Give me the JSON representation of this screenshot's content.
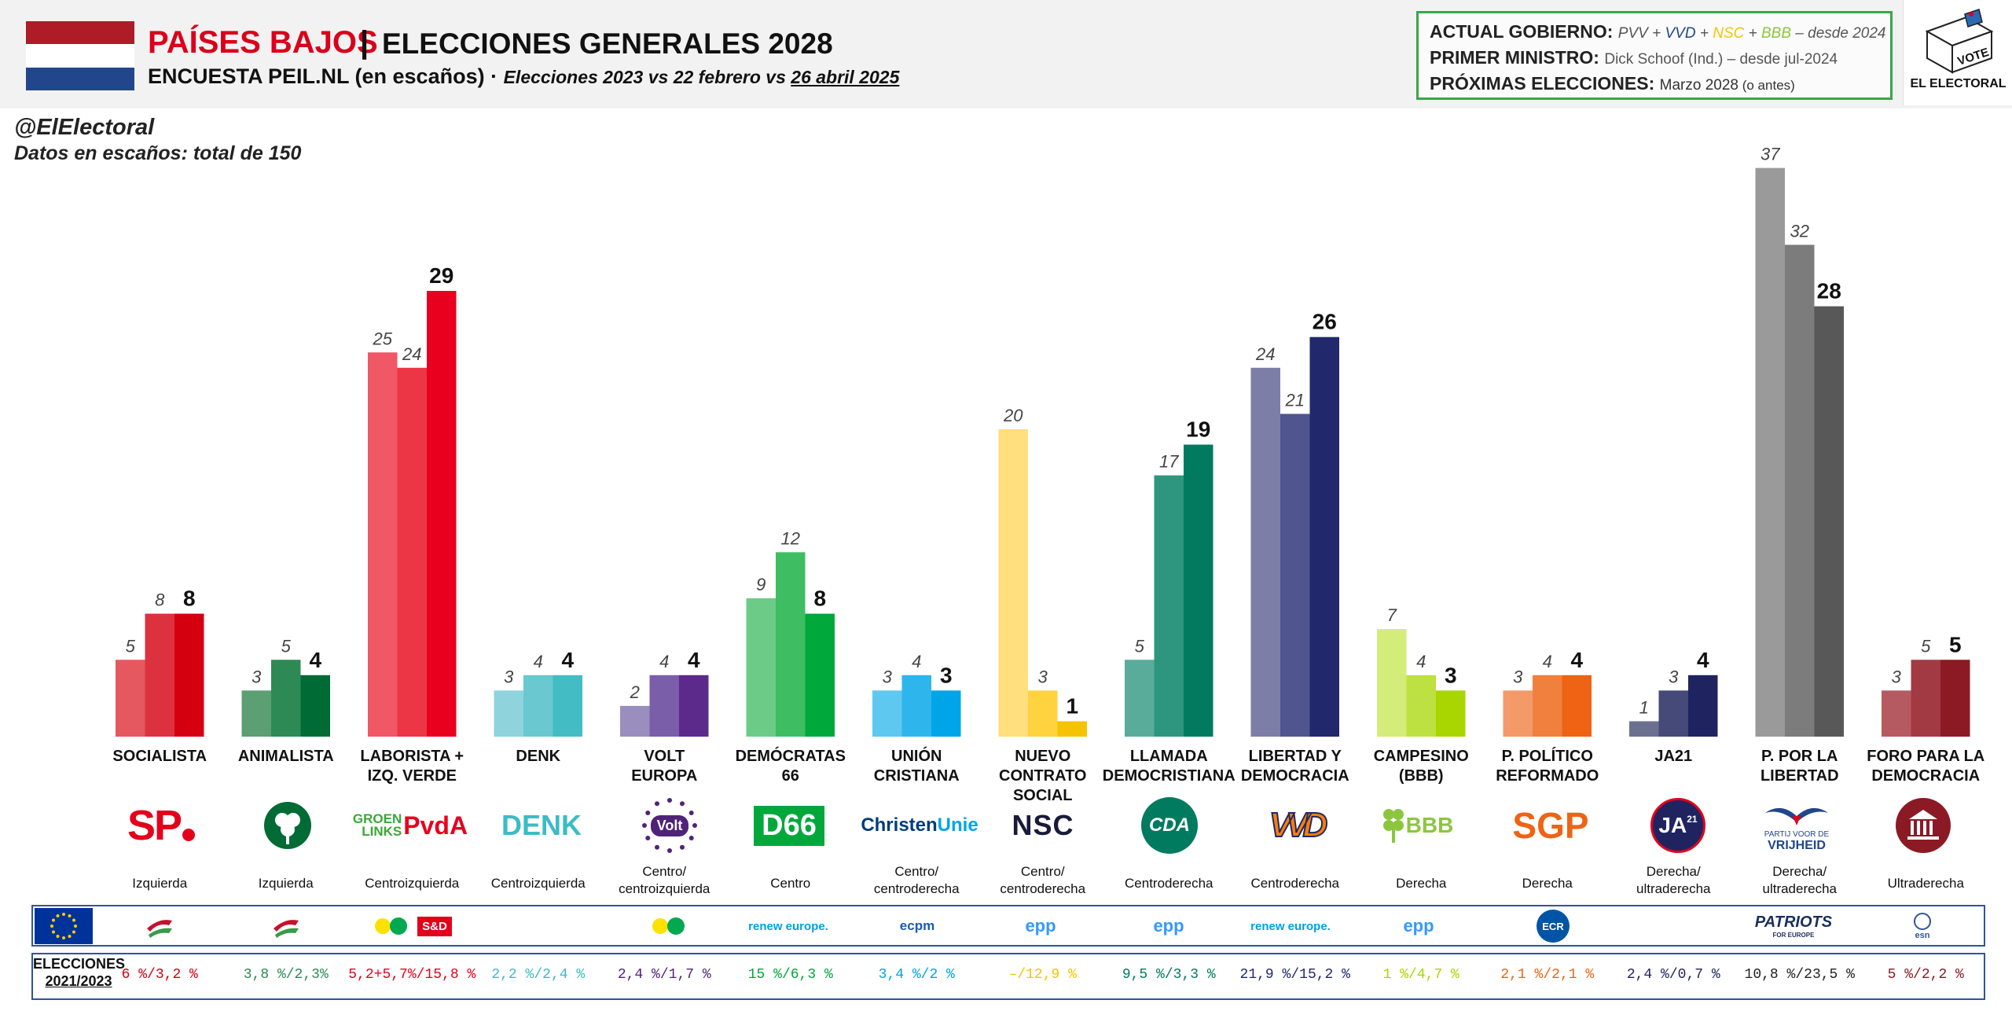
{
  "header": {
    "country": "PAÍSES BAJOS",
    "separator": "|",
    "election": "ELECCIONES GENERALES 2028",
    "subtitle_main": "ENCUESTA PEIL.NL (en escaños)",
    "subtitle_dot": " · ",
    "subtitle_compare": "Elecciones 2023 vs 22 febrero vs ",
    "subtitle_date": "26 abril 2025",
    "flag_colors": [
      "#ae1c28",
      "#ffffff",
      "#21468b"
    ]
  },
  "infobox": {
    "gov_key": "ACTUAL GOBIERNO:",
    "gov_parties": [
      {
        "text": "PVV",
        "color": "#555555"
      },
      {
        "text": " + ",
        "color": "#555555"
      },
      {
        "text": "VVD",
        "color": "#21468b"
      },
      {
        "text": " + ",
        "color": "#555555"
      },
      {
        "text": "NSC",
        "color": "#f5c400"
      },
      {
        "text": " + ",
        "color": "#555555"
      },
      {
        "text": "BBB",
        "color": "#8cc63f"
      }
    ],
    "gov_since": " – desde 2024",
    "pm_key": "PRIMER MINISTRO:",
    "pm_value": "Dick Schoof (Ind.) – desde jul-2024",
    "next_key": "PRÓXIMAS ELECCIONES:",
    "next_value": "Marzo 2028",
    "next_note": " (o antes)"
  },
  "brand": {
    "vote": "VOTE",
    "name": "EL ELECTORAL"
  },
  "handle": "@ElElectoral",
  "data_note": "Datos en escaños: total de 150",
  "chart_data": {
    "type": "bar",
    "title": "PAÍSES BAJOS | ELECCIONES GENERALES 2028",
    "ylabel": "Escaños",
    "ylim": [
      0,
      37
    ],
    "series_names": [
      "Elecciones 2023",
      "22 febrero",
      "26 abril 2025"
    ],
    "categories": [
      "SOCIALISTA",
      "ANIMALISTA",
      "LABORISTA + IZQ. VERDE",
      "DENK",
      "VOLT EUROPA",
      "DEMÓCRATAS 66",
      "UNIÓN CRISTIANA",
      "NUEVO CONTRATO SOCIAL",
      "LLAMADA DEMOCRISTIANA",
      "LIBERTAD Y DEMOCRACIA",
      "CAMPESINO (BBB)",
      "P. POLÍTICO REFORMADO",
      "JA21",
      "P. POR LA LIBERTAD",
      "FORO PARA LA DEMOCRACIA"
    ],
    "parties": [
      {
        "name_lines": [
          "SOCIALISTA"
        ],
        "values": [
          5,
          8,
          8
        ],
        "colors": [
          "#e5585f",
          "#dc3240",
          "#d40010"
        ],
        "logo": "SP",
        "logo_color": "#e3001b",
        "ideology_lines": [
          "Izquierda"
        ],
        "euro": "socialist-group",
        "result": "6 %/3,2 %",
        "result_color": "#d40010"
      },
      {
        "name_lines": [
          "ANIMALISTA"
        ],
        "values": [
          3,
          5,
          4
        ],
        "colors": [
          "#5b9f72",
          "#2e8a55",
          "#006b35"
        ],
        "logo": "PvdD",
        "logo_color": "#006b35",
        "ideology_lines": [
          "Izquierda"
        ],
        "euro": "left-group",
        "result": "3,8 %/2,3%",
        "result_color": "#2e8a55"
      },
      {
        "name_lines": [
          "LABORISTA +",
          "IZQ. VERDE"
        ],
        "values": [
          25,
          24,
          29
        ],
        "colors": [
          "#f05865",
          "#ec3545",
          "#e8001e"
        ],
        "logo": "GROENLINKS PvdA",
        "logo_color": "#e8001e",
        "ideology_lines": [
          "Centroizquierda"
        ],
        "euro": "greens-sd",
        "result": "5,2+5,7%/15,8 %",
        "result_color": "#e8001e"
      },
      {
        "name_lines": [
          "DENK"
        ],
        "values": [
          3,
          4,
          4
        ],
        "colors": [
          "#8fd4dc",
          "#69c8d0",
          "#43bcc4"
        ],
        "logo": "DENK",
        "logo_color": "#3cbcc4",
        "ideology_lines": [
          "Centroizquierda"
        ],
        "euro": "",
        "result": "2,2 %/2,4 %",
        "result_color": "#3cbcc4"
      },
      {
        "name_lines": [
          "VOLT",
          "EUROPA"
        ],
        "values": [
          2,
          4,
          4
        ],
        "colors": [
          "#9a8ebe",
          "#7a5eaa",
          "#5c2a8a"
        ],
        "logo": "Volt",
        "logo_color": "#502379",
        "ideology_lines": [
          "Centro/",
          "centroizquierda"
        ],
        "euro": "greens",
        "result": "2,4 %/1,7 %",
        "result_color": "#502379"
      },
      {
        "name_lines": [
          "DEMÓCRATAS",
          "66"
        ],
        "values": [
          9,
          12,
          8
        ],
        "colors": [
          "#6ccb86",
          "#3ebd63",
          "#00a83c"
        ],
        "logo": "D66",
        "logo_color": "#00a83c",
        "ideology_lines": [
          "Centro"
        ],
        "euro": "renew",
        "result": "15 %/6,3 %",
        "result_color": "#00a83c"
      },
      {
        "name_lines": [
          "UNIÓN",
          "CRISTIANA"
        ],
        "values": [
          3,
          4,
          3
        ],
        "colors": [
          "#5ec8f0",
          "#2eb6ec",
          "#00a5e8"
        ],
        "logo": "ChristenUnie",
        "logo_color": "#00a5e8",
        "ideology_lines": [
          "Centro/",
          "centroderecha"
        ],
        "euro": "ecpm",
        "result": "3,4 %/2 %",
        "result_color": "#00a5e8"
      },
      {
        "name_lines": [
          "NUEVO",
          "CONTRATO",
          "SOCIAL"
        ],
        "values": [
          20,
          3,
          1
        ],
        "colors": [
          "#ffdf7e",
          "#ffd340",
          "#f5c400"
        ],
        "logo": "NSC",
        "logo_color": "#1a1a3a",
        "ideology_lines": [
          "Centro/",
          "centroderecha"
        ],
        "euro": "epp",
        "result": "–/12,9 %",
        "result_color": "#f5c400"
      },
      {
        "name_lines": [
          "LLAMADA",
          "DEMOCRISTIANA"
        ],
        "values": [
          5,
          17,
          19
        ],
        "colors": [
          "#5aac9a",
          "#2e967e",
          "#007b5f"
        ],
        "logo": "CDA",
        "logo_color": "#007b5f",
        "ideology_lines": [
          "Centroderecha"
        ],
        "euro": "epp",
        "result": "9,5 %/3,3 %",
        "result_color": "#007b5f"
      },
      {
        "name_lines": [
          "LIBERTAD Y",
          "DEMOCRACIA"
        ],
        "values": [
          24,
          21,
          26
        ],
        "colors": [
          "#7c7ea8",
          "#505590",
          "#21286b"
        ],
        "logo": "VVD",
        "logo_color": "#ff7f00",
        "ideology_lines": [
          "Centroderecha"
        ],
        "euro": "renew",
        "result": "21,9 %/15,2 %",
        "result_color": "#21286b"
      },
      {
        "name_lines": [
          "CAMPESINO",
          "(BBB)"
        ],
        "values": [
          7,
          4,
          3
        ],
        "colors": [
          "#d4ec7a",
          "#bde140",
          "#a9d600"
        ],
        "logo": "BBB",
        "logo_color": "#8cc63f",
        "ideology_lines": [
          "Derecha"
        ],
        "euro": "epp",
        "result": "1 %/4,7 %",
        "result_color": "#a9d600"
      },
      {
        "name_lines": [
          "P. POLÍTICO",
          "REFORMADO"
        ],
        "values": [
          3,
          4,
          4
        ],
        "colors": [
          "#f39a68",
          "#f0803e",
          "#ee6414"
        ],
        "logo": "SGP",
        "logo_color": "#ee6414",
        "ideology_lines": [
          "Derecha"
        ],
        "euro": "ecr",
        "result": "2,1 %/2,1 %",
        "result_color": "#ee6414"
      },
      {
        "name_lines": [
          "JA21"
        ],
        "values": [
          1,
          3,
          4
        ],
        "colors": [
          "#6c7090",
          "#454a78",
          "#1f2460"
        ],
        "logo": "JA21",
        "logo_color": "#1f2460",
        "ideology_lines": [
          "Derecha/",
          "ultraderecha"
        ],
        "euro": "",
        "result": "2,4 %/0,7 %",
        "result_color": "#1f2460"
      },
      {
        "name_lines": [
          "P. POR LA",
          "LIBERTAD"
        ],
        "values": [
          37,
          32,
          28
        ],
        "colors": [
          "#9a9a9a",
          "#7c7c7c",
          "#585858"
        ],
        "logo": "PVV",
        "logo_color": "#21468b",
        "ideology_lines": [
          "Derecha/",
          "ultraderecha"
        ],
        "euro": "patriots",
        "result": "10,8 %/23,5 %",
        "result_color": "#222222"
      },
      {
        "name_lines": [
          "FORO PARA LA",
          "DEMOCRACIA"
        ],
        "values": [
          3,
          5,
          5
        ],
        "colors": [
          "#b65a62",
          "#a23a44",
          "#8b1a24"
        ],
        "logo": "FvD",
        "logo_color": "#8b1a24",
        "ideology_lines": [
          "Ultraderecha"
        ],
        "euro": "esn",
        "result": "5 %/2,2 %",
        "result_color": "#8b1a24"
      }
    ]
  },
  "logos_text": {
    "sp": "SP",
    "groenlinks_1": "GROEN",
    "groenlinks_2": "LINKS",
    "pvda": "PvdA",
    "denk": "DENK",
    "volt": "Volt",
    "d66": "D66",
    "cu_1": "Christen",
    "cu_2": "Unie",
    "nsc": "NSC",
    "cda": "CDA",
    "vvd": "VVD",
    "bbb": "BBB",
    "sgp": "SGP",
    "ja21": "JA",
    "ja21_sup": "21",
    "pvv_1": "PARTIJ VOOR DE",
    "pvv_2": "VRIJHEID"
  },
  "euro_labels": {
    "sd": "S&D",
    "renew": "renew europe.",
    "epp": "epp",
    "ecpm": "ecpm",
    "ecr": "ECR",
    "patriots": "PATRIOTS",
    "patriots_sub": "FOR EUROPE",
    "esn": "esn"
  },
  "results_label_1": "ELECCIONES",
  "results_label_2": "2021/2023"
}
